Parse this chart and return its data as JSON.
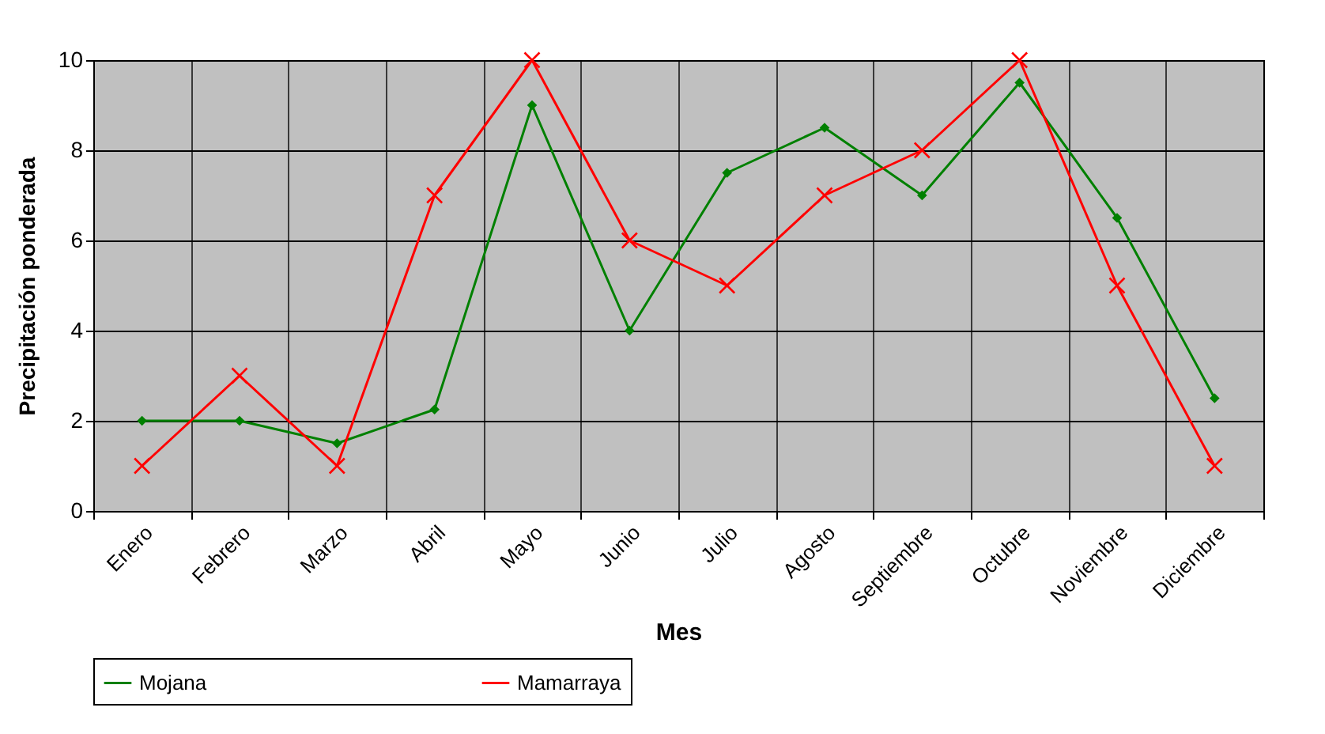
{
  "chart_data": {
    "type": "line",
    "xlabel": "Mes",
    "ylabel": "Precipitación ponderada",
    "categories": [
      "Enero",
      "Febrero",
      "Marzo",
      "Abril",
      "Mayo",
      "Junio",
      "Julio",
      "Agosto",
      "Septiembre",
      "Octubre",
      "Noviembre",
      "Diciembre"
    ],
    "series": [
      {
        "name": "Mojana",
        "color": "#008000",
        "marker": "diamond",
        "values": [
          2,
          2,
          1.5,
          2.25,
          9,
          4,
          7.5,
          8.5,
          7,
          9.5,
          6.5,
          2.5
        ]
      },
      {
        "name": "Mamarraya",
        "color": "#ff0000",
        "marker": "cross",
        "values": [
          1,
          3,
          1,
          7,
          10,
          6,
          5,
          7,
          8,
          10,
          5,
          1
        ]
      }
    ],
    "ylim": [
      0,
      10
    ],
    "yticks": [
      0,
      2,
      4,
      6,
      8,
      10
    ],
    "grid": true,
    "legend": "bottom",
    "line_style": "solid"
  }
}
